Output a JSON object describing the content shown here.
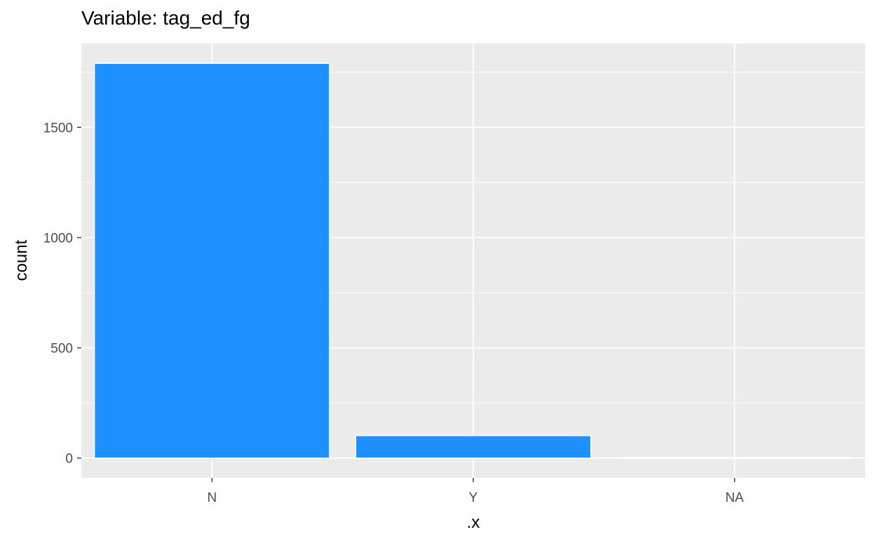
{
  "chart_data": {
    "type": "bar",
    "title": "Variable: tag_ed_fg",
    "xlabel": ".x",
    "ylabel": "count",
    "categories": [
      "N",
      "Y",
      "NA"
    ],
    "values": [
      1790,
      102,
      3
    ],
    "ylim": [
      -90,
      1880
    ],
    "yticks": [
      0,
      500,
      1000,
      1500
    ],
    "ytick_labels": [
      "0",
      "500",
      "1000",
      "1500"
    ],
    "grid": true,
    "legend": "none",
    "colors": {
      "bar_fill": "#1e90ff",
      "bar_outline": "#ffffff",
      "panel_background": "#ebebeb",
      "grid": "#ffffff"
    }
  }
}
